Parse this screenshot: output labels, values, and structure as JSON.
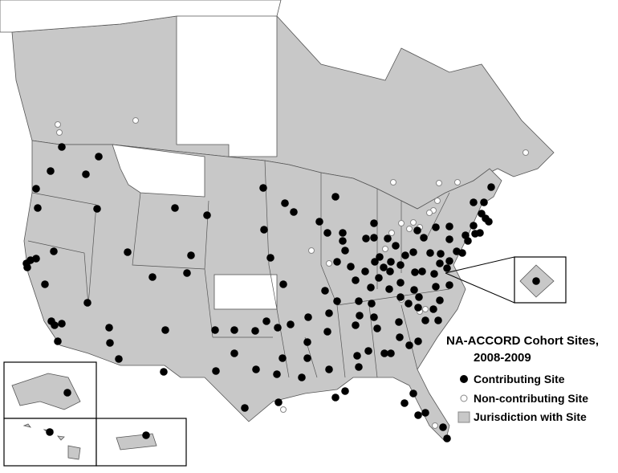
{
  "legend": {
    "title_lines": [
      "NA-ACCORD Cohort Sites,",
      "2008-2009"
    ],
    "items": [
      {
        "label": "Contributing Site"
      },
      {
        "label": "Non-contributing Site"
      },
      {
        "label": "Jurisdiction with Site"
      }
    ]
  }
}
